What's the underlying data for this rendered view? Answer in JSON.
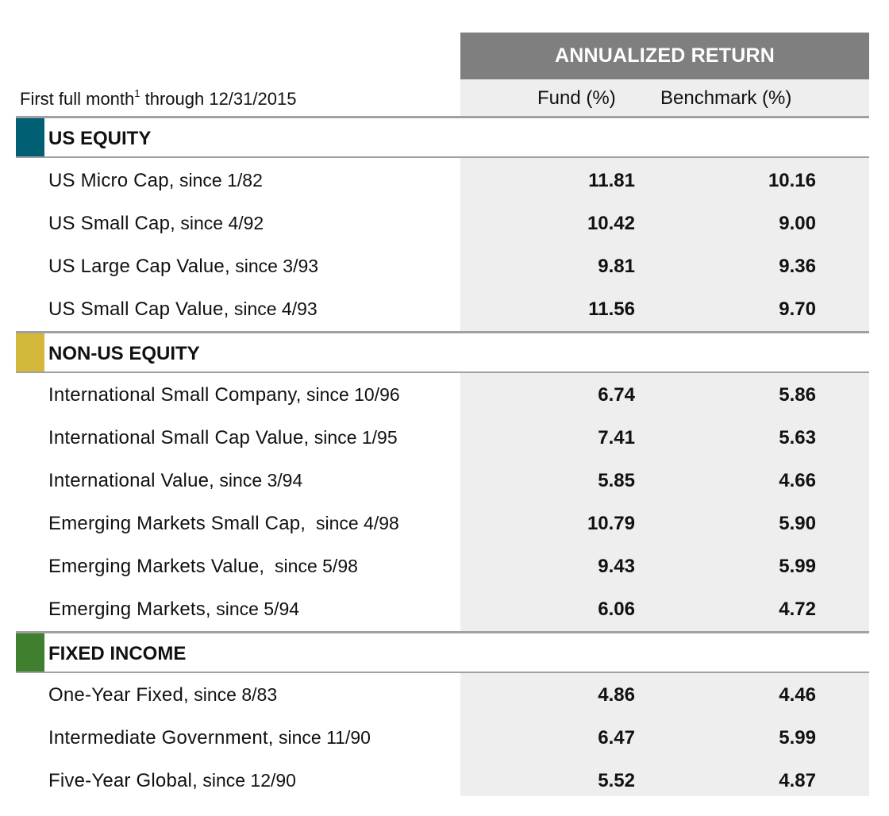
{
  "header": {
    "annualized_return": "ANNUALIZED RETURN",
    "caption_prefix": "First full month",
    "caption_sup": "1",
    "caption_suffix": " through 12/31/2015",
    "fund_col": "Fund (%)",
    "benchmark_col": "Benchmark (%)"
  },
  "colors": {
    "us_equity": "#005f73",
    "non_us_equity": "#d4b83c",
    "fixed_income": "#3f7f2d",
    "header_bg": "#7f7f7f",
    "column_shade": "#eeeeee"
  },
  "sections": [
    {
      "title": "US EQUITY",
      "rows": [
        {
          "name": "US Micro Cap,",
          "since": " since 1/82",
          "fund": "11.81",
          "benchmark": "10.16"
        },
        {
          "name": "US Small Cap,",
          "since": " since 4/92",
          "fund": "10.42",
          "benchmark": "9.00"
        },
        {
          "name": "US Large Cap Value,",
          "since": " since 3/93",
          "fund": "9.81",
          "benchmark": "9.36"
        },
        {
          "name": "US Small Cap Value,",
          "since": " since 4/93",
          "fund": "11.56",
          "benchmark": "9.70"
        }
      ]
    },
    {
      "title": "NON-US EQUITY",
      "rows": [
        {
          "name": "International Small Company,",
          "since": " since 10/96",
          "fund": "6.74",
          "benchmark": "5.86"
        },
        {
          "name": "International Small Cap Value,",
          "since": " since 1/95",
          "fund": "7.41",
          "benchmark": "5.63"
        },
        {
          "name": "International Value,",
          "since": " since 3/94",
          "fund": "5.85",
          "benchmark": "4.66"
        },
        {
          "name": "Emerging Markets Small Cap,",
          "since": "  since 4/98",
          "fund": "10.79",
          "benchmark": "5.90"
        },
        {
          "name": "Emerging Markets Value,",
          "since": "  since 5/98",
          "fund": "9.43",
          "benchmark": "5.99"
        },
        {
          "name": "Emerging Markets,",
          "since": " since 5/94",
          "fund": "6.06",
          "benchmark": "4.72"
        }
      ]
    },
    {
      "title": "FIXED INCOME",
      "rows": [
        {
          "name": "One-Year Fixed,",
          "since": " since 8/83",
          "fund": "4.86",
          "benchmark": "4.46"
        },
        {
          "name": "Intermediate Government,",
          "since": " since 11/90",
          "fund": "6.47",
          "benchmark": "5.99"
        },
        {
          "name": "Five-Year Global,",
          "since": " since 12/90",
          "fund": "5.52",
          "benchmark": "4.87"
        }
      ]
    }
  ]
}
